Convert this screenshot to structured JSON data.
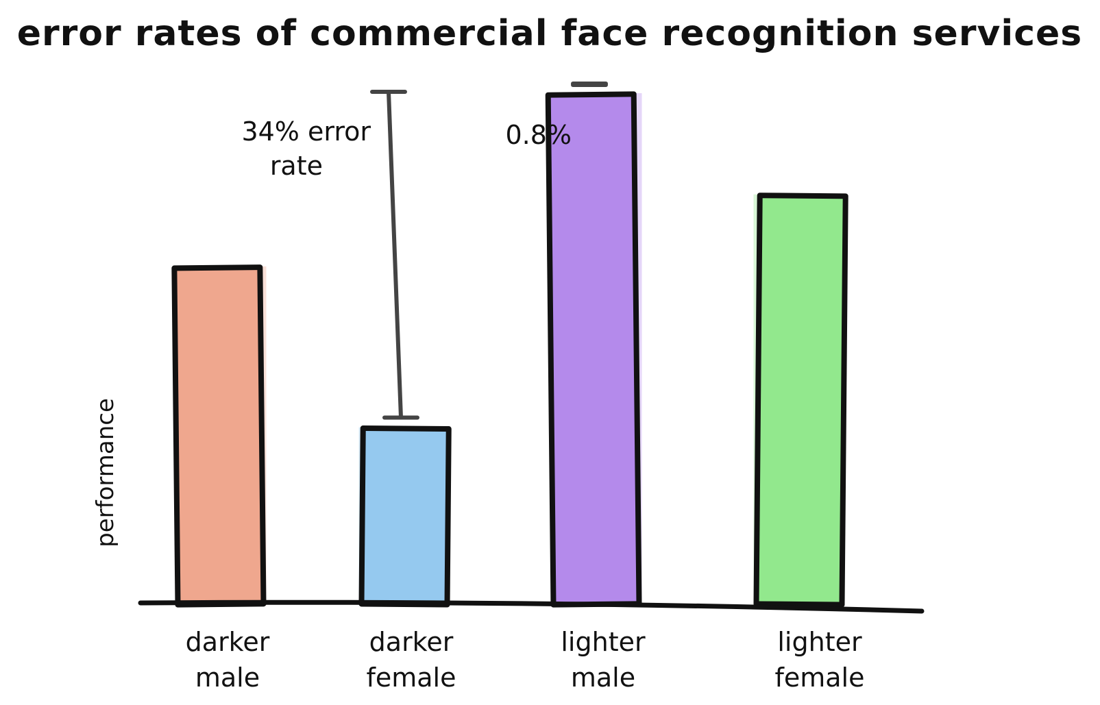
{
  "chart_data": {
    "type": "bar",
    "title": "error rates of commercial face recognition services",
    "ylabel": "performance",
    "xlabel": "",
    "ylim": [
      0,
      100
    ],
    "grid": false,
    "categories": [
      [
        "darker",
        "male"
      ],
      [
        "darker",
        "female"
      ],
      [
        "lighter",
        "male"
      ],
      [
        "lighter",
        "female"
      ]
    ],
    "values": [
      65.5,
      34.2,
      99.2,
      79.5
    ],
    "colors": [
      "#efa78e",
      "#95c9ef",
      "#b48aeb",
      "#92e88d"
    ],
    "annotations": [
      {
        "category_index": 1,
        "from": 34.2,
        "to": 100,
        "lines": [
          "34% error",
          "rate"
        ]
      },
      {
        "category_index": 2,
        "from": 99.2,
        "to": 100,
        "lines": [
          "0.8%"
        ]
      }
    ]
  }
}
